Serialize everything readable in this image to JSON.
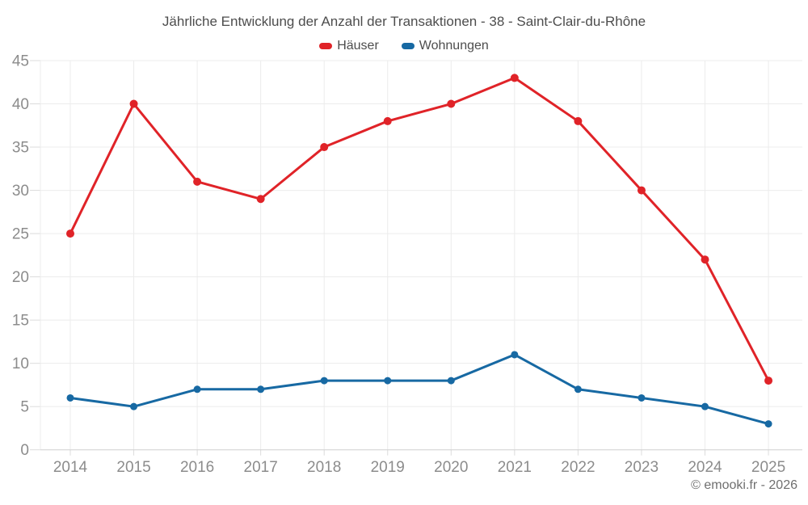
{
  "chart_data": {
    "type": "line",
    "title": "Jährliche Entwicklung der Anzahl der Transaktionen - 38 - Saint-Clair-du-Rhône",
    "footer": "© emooki.fr - 2026",
    "categories": [
      "2014",
      "2015",
      "2016",
      "2017",
      "2018",
      "2019",
      "2020",
      "2021",
      "2022",
      "2023",
      "2024",
      "2025"
    ],
    "series": [
      {
        "name": "Häuser",
        "color": "#e02328",
        "marker_radius": 5,
        "values": [
          25,
          40,
          31,
          29,
          35,
          38,
          40,
          43,
          38,
          30,
          22,
          8
        ]
      },
      {
        "name": "Wohnungen",
        "color": "#1769a3",
        "marker_radius": 4.5,
        "values": [
          6,
          5,
          7,
          7,
          8,
          8,
          8,
          11,
          7,
          6,
          5,
          3
        ]
      }
    ],
    "xlabel": "",
    "ylabel": "",
    "ylim": [
      0,
      45
    ],
    "ytick_step": 5,
    "yticks": [
      "0",
      "5",
      "10",
      "15",
      "20",
      "25",
      "30",
      "35",
      "40",
      "45"
    ],
    "grid": true,
    "legend_position": "top"
  }
}
